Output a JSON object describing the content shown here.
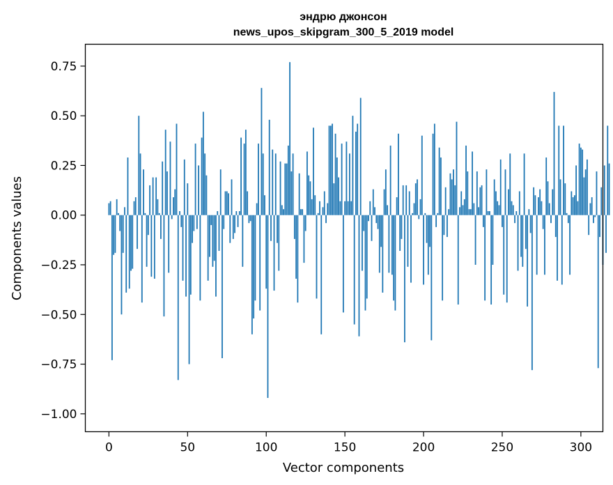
{
  "chart_data": {
    "type": "bar",
    "title_line1": "эндрю джонсон",
    "title_line2": "news_upos_skipgram_300_5_2019 model",
    "xlabel": "Vector components",
    "ylabel": "Components values",
    "xlim": [
      -15,
      314
    ],
    "ylim": [
      -1.09,
      0.86
    ],
    "xticks": [
      0,
      50,
      100,
      150,
      200,
      250,
      300
    ],
    "xtick_labels": [
      "0",
      "50",
      "100",
      "150",
      "200",
      "250",
      "300"
    ],
    "yticks": [
      0.75,
      0.5,
      0.25,
      0.0,
      -0.25,
      -0.5,
      -0.75,
      -1.0
    ],
    "ytick_labels": [
      "0.75",
      "0.50",
      "0.25",
      "0.00",
      "−0.25",
      "−0.50",
      "−0.75",
      "−1.00"
    ],
    "bar_color": "#1f77b4",
    "values": [
      0.06,
      0.07,
      -0.73,
      -0.2,
      -0.19,
      0.08,
      0.01,
      -0.08,
      -0.5,
      -0.19,
      0.04,
      -0.39,
      0.29,
      -0.37,
      -0.28,
      -0.27,
      0.07,
      0.09,
      -0.17,
      0.5,
      0.31,
      -0.44,
      0.23,
      0.01,
      -0.26,
      -0.1,
      0.15,
      -0.31,
      0.19,
      -0.32,
      0.19,
      0.08,
      0.01,
      -0.12,
      0.27,
      -0.51,
      0.43,
      0.22,
      -0.29,
      0.37,
      -0.02,
      0.09,
      0.13,
      0.46,
      -0.83,
      0.02,
      -0.06,
      -0.33,
      0.28,
      -0.41,
      0.16,
      -0.75,
      -0.4,
      -0.14,
      -0.08,
      0.36,
      -0.07,
      0.25,
      -0.43,
      0.39,
      0.52,
      0.31,
      0.2,
      -0.33,
      -0.21,
      -0.05,
      -0.26,
      -0.23,
      -0.41,
      0.02,
      -0.18,
      0.23,
      -0.72,
      -0.07,
      0.12,
      0.12,
      0.11,
      -0.14,
      0.18,
      -0.12,
      -0.09,
      0.02,
      -0.06,
      0.02,
      0.39,
      -0.26,
      0.36,
      0.43,
      0.12,
      -0.04,
      -0.03,
      -0.6,
      -0.52,
      -0.43,
      0.06,
      0.36,
      -0.48,
      0.64,
      0.31,
      0.1,
      -0.37,
      -0.92,
      0.48,
      -0.13,
      0.33,
      -0.38,
      0.31,
      -0.14,
      -0.28,
      0.27,
      0.05,
      0.03,
      0.26,
      0.26,
      0.35,
      0.77,
      0.22,
      0.31,
      -0.12,
      -0.32,
      -0.44,
      0.21,
      0.03,
      0.03,
      -0.24,
      -0.08,
      0.32,
      0.2,
      0.17,
      0.08,
      0.44,
      0.1,
      -0.42,
      0.01,
      0.07,
      -0.6,
      0.04,
      0.12,
      -0.04,
      0.06,
      0.45,
      0.45,
      0.46,
      0.16,
      0.41,
      0.29,
      0.19,
      0.07,
      0.36,
      -0.49,
      0.07,
      0.37,
      0.07,
      0.31,
      0.07,
      0.5,
      -0.55,
      0.42,
      0.46,
      -0.61,
      0.59,
      -0.28,
      -0.08,
      -0.48,
      -0.42,
      -0.03,
      0.07,
      -0.13,
      0.13,
      0.04,
      -0.04,
      -0.07,
      -0.29,
      -0.16,
      -0.39,
      0.13,
      0.23,
      0.05,
      -0.29,
      0.35,
      -0.3,
      -0.43,
      -0.48,
      0.09,
      0.41,
      -0.18,
      -0.12,
      0.15,
      -0.64,
      0.15,
      -0.26,
      0.12,
      -0.34,
      0.01,
      0.06,
      0.16,
      0.18,
      -0.02,
      0.08,
      0.4,
      -0.35,
      0.01,
      -0.14,
      -0.3,
      -0.16,
      -0.63,
      0.41,
      0.46,
      -0.06,
      0.01,
      0.34,
      0.29,
      -0.43,
      -0.1,
      0.14,
      -0.11,
      0.03,
      0.21,
      0.18,
      0.23,
      0.15,
      0.47,
      -0.45,
      0.04,
      0.12,
      0.05,
      0.08,
      0.35,
      0.22,
      0.03,
      0.03,
      0.32,
      0.06,
      -0.25,
      0.22,
      0.04,
      0.14,
      0.15,
      -0.06,
      -0.43,
      0.23,
      0.02,
      0.02,
      -0.45,
      -0.25,
      0.18,
      0.12,
      0.07,
      0.05,
      0.28,
      -0.06,
      -0.4,
      0.23,
      -0.44,
      0.13,
      0.31,
      0.07,
      0.05,
      -0.04,
      0.02,
      -0.28,
      0.12,
      -0.21,
      -0.26,
      0.31,
      -0.17,
      -0.46,
      0.03,
      -0.09,
      -0.78,
      0.14,
      0.1,
      -0.3,
      0.09,
      0.13,
      0.07,
      -0.07,
      -0.3,
      0.29,
      0.17,
      0.06,
      -0.04,
      0.13,
      0.62,
      -0.11,
      -0.33,
      0.45,
      0.18,
      -0.35,
      0.45,
      0.16,
      0.01,
      -0.04,
      -0.3,
      0.12,
      0.09,
      0.1,
      0.25,
      0.07,
      0.36,
      0.34,
      0.33,
      0.19,
      0.23,
      0.28,
      -0.1,
      0.06,
      0.09,
      -0.04,
      -0.01,
      0.22,
      -0.77,
      -0.11,
      0.14,
      -0.25,
      0.25,
      -0.19,
      0.45,
      0.26
    ]
  }
}
